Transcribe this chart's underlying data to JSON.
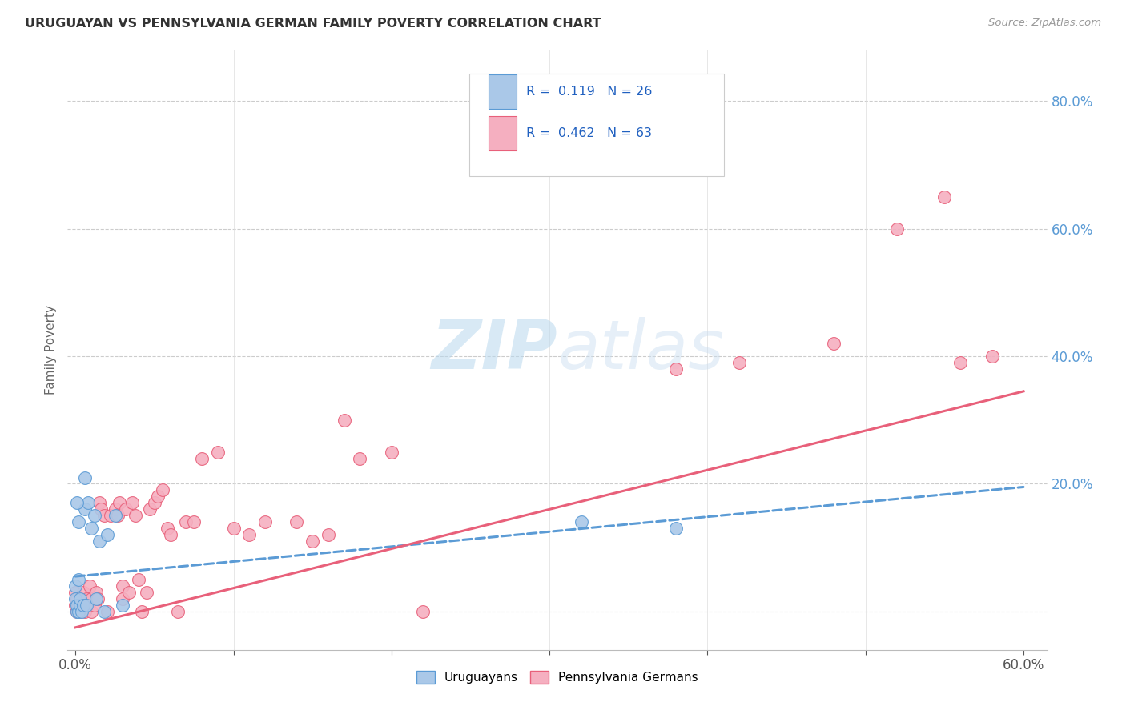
{
  "title": "URUGUAYAN VS PENNSYLVANIA GERMAN FAMILY POVERTY CORRELATION CHART",
  "source": "Source: ZipAtlas.com",
  "ylabel": "Family Poverty",
  "x_tick_labels_show": [
    "0.0%",
    "60.0%"
  ],
  "x_tick_positions_show": [
    0.0,
    0.6
  ],
  "x_grid_positions": [
    0.0,
    0.1,
    0.2,
    0.3,
    0.4,
    0.5,
    0.6
  ],
  "y_tick_labels_right": [
    "80.0%",
    "60.0%",
    "40.0%",
    "20.0%"
  ],
  "y_tick_positions_right": [
    0.8,
    0.6,
    0.4,
    0.2
  ],
  "xlim": [
    -0.005,
    0.615
  ],
  "ylim": [
    -0.06,
    0.88
  ],
  "watermark": "ZIPatlas",
  "legend_label1": "Uruguayans",
  "legend_label2": "Pennsylvania Germans",
  "R1": "0.119",
  "N1": "26",
  "R2": "0.462",
  "N2": "63",
  "color_uruguayan_fill": "#aac8e8",
  "color_pa_german_fill": "#f5afc0",
  "color_uruguayan_edge": "#5b9bd5",
  "color_pa_german_edge": "#e8607a",
  "color_uruguayan_line": "#5b9bd5",
  "color_pa_german_line": "#e8607a",
  "legend_R_color": "#2060c0",
  "uru_x": [
    0.0,
    0.0,
    0.001,
    0.001,
    0.002,
    0.002,
    0.003,
    0.003,
    0.004,
    0.005,
    0.006,
    0.006,
    0.007,
    0.008,
    0.01,
    0.012,
    0.013,
    0.015,
    0.018,
    0.02,
    0.025,
    0.03,
    0.001,
    0.002,
    0.32,
    0.38
  ],
  "uru_y": [
    0.02,
    0.04,
    0.0,
    0.01,
    0.0,
    0.05,
    0.01,
    0.02,
    0.0,
    0.01,
    0.16,
    0.21,
    0.01,
    0.17,
    0.13,
    0.15,
    0.02,
    0.11,
    0.0,
    0.12,
    0.15,
    0.01,
    0.17,
    0.14,
    0.14,
    0.13
  ],
  "pa_x": [
    0.0,
    0.0,
    0.001,
    0.001,
    0.002,
    0.003,
    0.003,
    0.004,
    0.005,
    0.006,
    0.007,
    0.008,
    0.009,
    0.01,
    0.01,
    0.012,
    0.013,
    0.014,
    0.015,
    0.016,
    0.018,
    0.02,
    0.022,
    0.025,
    0.027,
    0.028,
    0.03,
    0.03,
    0.032,
    0.034,
    0.036,
    0.038,
    0.04,
    0.042,
    0.045,
    0.047,
    0.05,
    0.052,
    0.055,
    0.058,
    0.06,
    0.065,
    0.07,
    0.075,
    0.08,
    0.09,
    0.1,
    0.11,
    0.12,
    0.14,
    0.15,
    0.16,
    0.18,
    0.2,
    0.22,
    0.17,
    0.38,
    0.42,
    0.48,
    0.52,
    0.55,
    0.56,
    0.58
  ],
  "pa_y": [
    0.01,
    0.03,
    0.0,
    0.02,
    0.01,
    0.0,
    0.02,
    0.01,
    0.03,
    0.0,
    0.02,
    0.01,
    0.04,
    0.0,
    0.02,
    0.01,
    0.03,
    0.02,
    0.17,
    0.16,
    0.15,
    0.0,
    0.15,
    0.16,
    0.15,
    0.17,
    0.02,
    0.04,
    0.16,
    0.03,
    0.17,
    0.15,
    0.05,
    0.0,
    0.03,
    0.16,
    0.17,
    0.18,
    0.19,
    0.13,
    0.12,
    0.0,
    0.14,
    0.14,
    0.24,
    0.25,
    0.13,
    0.12,
    0.14,
    0.14,
    0.11,
    0.12,
    0.24,
    0.25,
    0.0,
    0.3,
    0.38,
    0.39,
    0.42,
    0.6,
    0.65,
    0.39,
    0.4
  ],
  "uru_line_x": [
    0.0,
    0.6
  ],
  "uru_line_y": [
    0.055,
    0.195
  ],
  "pa_line_x": [
    0.0,
    0.6
  ],
  "pa_line_y": [
    -0.025,
    0.345
  ]
}
